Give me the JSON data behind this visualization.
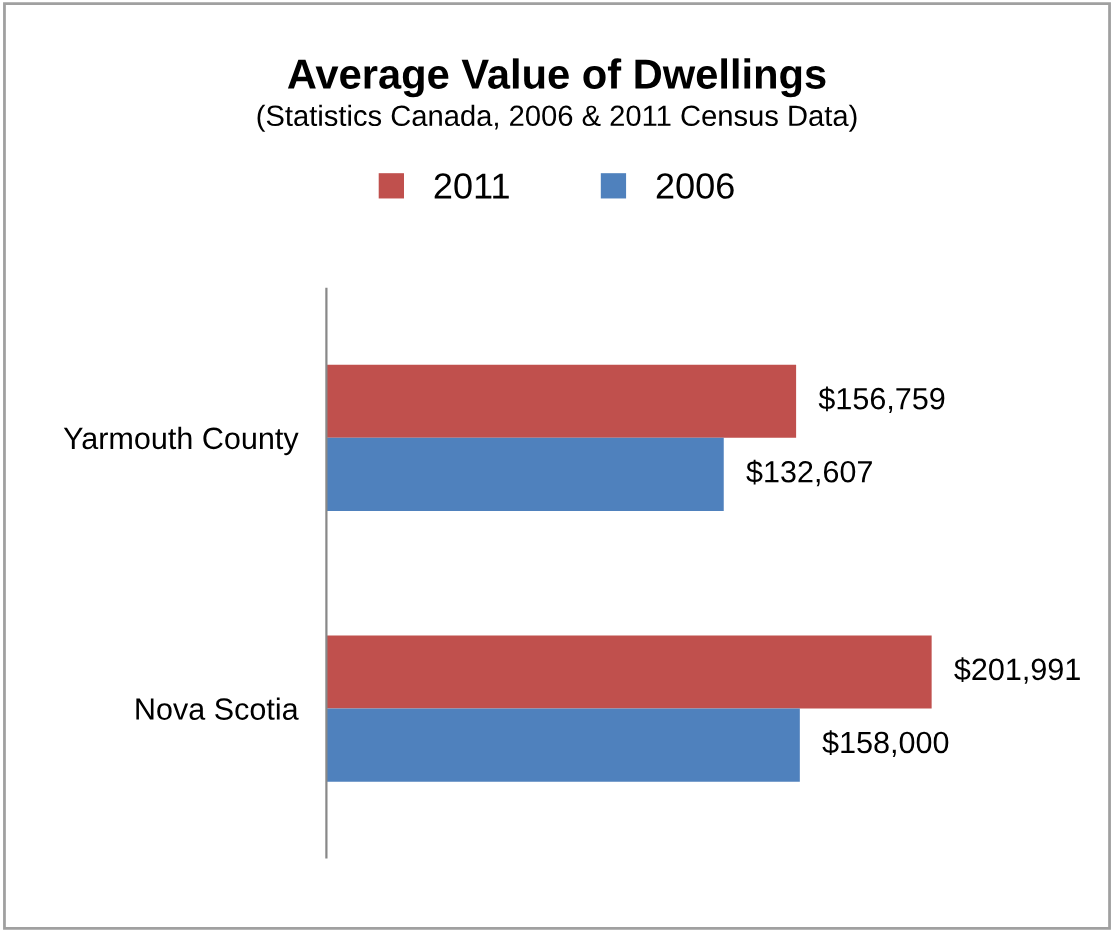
{
  "chart_data": {
    "type": "bar",
    "orientation": "horizontal",
    "title": "Average Value of Dwellings",
    "subtitle": "(Statistics Canada, 2006 & 2011 Census Data)",
    "categories": [
      "Yarmouth County",
      "Nova Scotia"
    ],
    "series": [
      {
        "name": "2011",
        "color": "#c0504d",
        "values": [
          156759,
          201991
        ],
        "value_labels": [
          "$156,759",
          "$201,991"
        ]
      },
      {
        "name": "2006",
        "color": "#4f81bd",
        "values": [
          132607,
          158000
        ],
        "value_labels": [
          "$132,607",
          "$158,000"
        ]
      }
    ],
    "legend": "top",
    "grid": false,
    "tick_labels": "y"
  }
}
